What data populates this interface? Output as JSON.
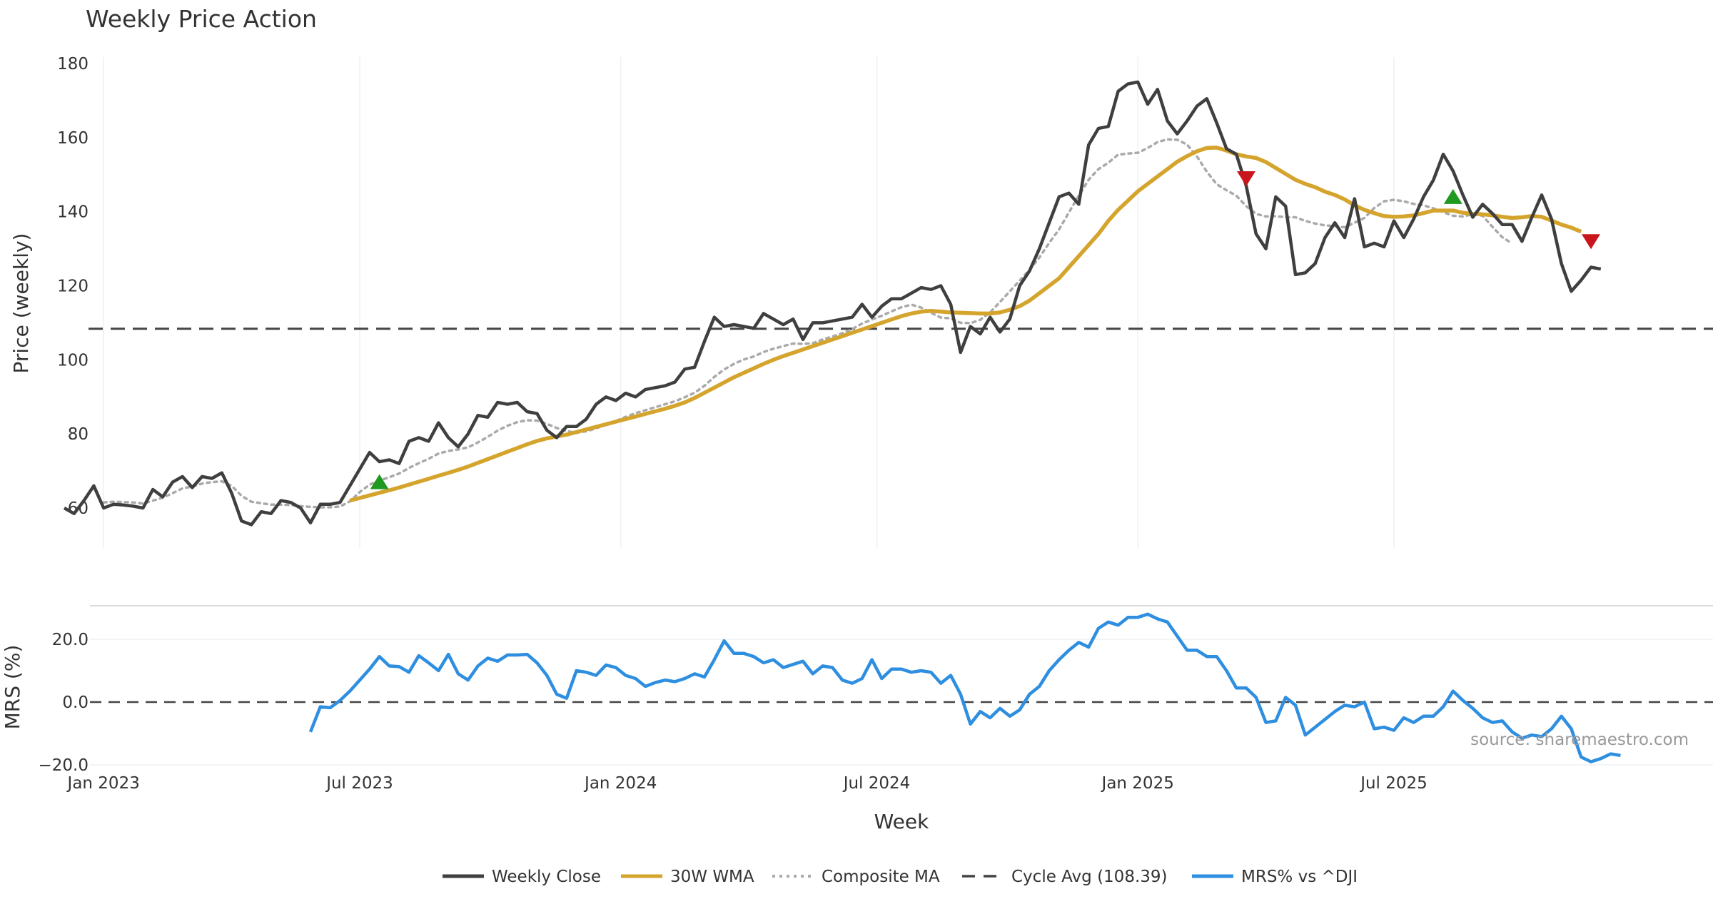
{
  "chart_data": {
    "type": "line",
    "title": "Weekly Price Action",
    "xlabel": "Week",
    "source": "source: sharemaestro.com",
    "x_ticks": [
      {
        "label": "Jan 2023",
        "t": 4
      },
      {
        "label": "Jul 2023",
        "t": 30
      },
      {
        "label": "Jan 2024",
        "t": 56.5
      },
      {
        "label": "Jul 2024",
        "t": 82.5
      },
      {
        "label": "Jan 2025",
        "t": 109
      },
      {
        "label": "Jul 2025",
        "t": 135
      }
    ],
    "price_panel": {
      "ylabel": "Price (weekly)",
      "ylim": [
        48,
        182
      ],
      "yticks": [
        60,
        80,
        100,
        120,
        140,
        160,
        180
      ],
      "cycle_avg": 108.39,
      "weekly_close": [
        60,
        58.5,
        62,
        66,
        60,
        61,
        60.8,
        60.5,
        60,
        65,
        63,
        67,
        68.5,
        65.5,
        68.5,
        68,
        69.5,
        64,
        56.5,
        55.5,
        59,
        58.5,
        62,
        61.5,
        60,
        56,
        61,
        61,
        61.5,
        66,
        70.5,
        75,
        72.5,
        73,
        72,
        78,
        79,
        78,
        83,
        79,
        76.5,
        80,
        85,
        84.5,
        88.5,
        88,
        88.5,
        86,
        85.5,
        81,
        79,
        82,
        82,
        84,
        88,
        90,
        89,
        91,
        90,
        92,
        92.5,
        93,
        94,
        97.5,
        98,
        105,
        111.5,
        109,
        109.5,
        109,
        108.5,
        112.5,
        111,
        109.5,
        111,
        105.5,
        110,
        110,
        110.5,
        111,
        111.5,
        115,
        111.5,
        114.5,
        116.5,
        116.5,
        118,
        119.5,
        119,
        120,
        115,
        102,
        109,
        107,
        111.5,
        107.5,
        111,
        120,
        124,
        130,
        137,
        144,
        145,
        142,
        158,
        162.5,
        163,
        172.5,
        174.5,
        175,
        169,
        173,
        164.5,
        161,
        164.5,
        168.5,
        170.5,
        164,
        157,
        155.5,
        147,
        134,
        130,
        144,
        141.5,
        123,
        123.5,
        126,
        133,
        137,
        133,
        143.5,
        130.5,
        131.5,
        130.5,
        137.5,
        133,
        138,
        144,
        148.5,
        155.5,
        151,
        144.5,
        138.5,
        142,
        139.5,
        136.5,
        136.5,
        132,
        138.5,
        144.5,
        138,
        126,
        118.5,
        121.5,
        125,
        124.5
      ],
      "wma_30": {
        "start_index": 29,
        "values": [
          62,
          62.7,
          63.4,
          64.1,
          64.8,
          65.5,
          66.3,
          67.1,
          67.9,
          68.7,
          69.5,
          70.3,
          71.2,
          72.2,
          73.2,
          74.2,
          75.2,
          76.2,
          77.2,
          78.1,
          78.8,
          79.3,
          79.8,
          80.5,
          81.2,
          81.9,
          82.6,
          83.3,
          84,
          84.7,
          85.4,
          86.1,
          86.8,
          87.6,
          88.5,
          89.7,
          91.1,
          92.5,
          93.9,
          95.3,
          96.5,
          97.7,
          98.9,
          100,
          101,
          101.9,
          102.8,
          103.7,
          104.6,
          105.5,
          106.4,
          107.3,
          108.2,
          109.1,
          110,
          110.9,
          111.8,
          112.5,
          113,
          113.2,
          113,
          112.8,
          112.7,
          112.6,
          112.5,
          112.5,
          112.8,
          113.5,
          114.5,
          116,
          118,
          120,
          122,
          125,
          128,
          131,
          134,
          137.5,
          140.5,
          143,
          145.5,
          147.5,
          149.5,
          151.5,
          153.5,
          155,
          156.3,
          157.2,
          157.3,
          156.5,
          155.5,
          154.9,
          154.5,
          153.4,
          151.8,
          150.2,
          148.6,
          147.5,
          146.6,
          145.4,
          144.5,
          143.3,
          141.7,
          140.5,
          139.6,
          138.8,
          138.6,
          138.7,
          139,
          139.6,
          140.3,
          140.3,
          140.3,
          139.7,
          139.4,
          139.3,
          139,
          138.6,
          138.3,
          138.5,
          138.8,
          138.6,
          137.6,
          136.5,
          135.7,
          134.6
        ]
      },
      "composite_ma": {
        "start_index": 4,
        "values": [
          61.5,
          61.7,
          61.6,
          61.5,
          61.2,
          62,
          62.8,
          64,
          65.3,
          65.8,
          66.6,
          67,
          67.2,
          66,
          63.3,
          61.7,
          61.3,
          60.9,
          60.9,
          60.8,
          60.5,
          60.3,
          60.2,
          60.2,
          60.4,
          61.8,
          64.3,
          66.3,
          67.4,
          68.3,
          69.3,
          70.8,
          72.1,
          73.3,
          74.7,
          75.4,
          75.8,
          76.4,
          77.7,
          79.2,
          80.9,
          82.2,
          83.2,
          83.7,
          83.6,
          82.7,
          81.6,
          80.8,
          80.3,
          80.7,
          81.5,
          82.6,
          83.5,
          84.6,
          85.6,
          86.4,
          87.2,
          88,
          88.8,
          89.9,
          91.1,
          93,
          95.4,
          97.4,
          98.9,
          100.1,
          100.9,
          102.1,
          103,
          103.7,
          104.4,
          104.3,
          104.5,
          105.5,
          106.3,
          107.2,
          108.3,
          109.8,
          110.9,
          111.9,
          113.1,
          114.2,
          114.9,
          114.1,
          112.7,
          111.4,
          111.2,
          110,
          109.9,
          110.8,
          112.8,
          115.6,
          118.5,
          121.4,
          124.3,
          127.6,
          131.6,
          135.2,
          139.8,
          144.3,
          148.6,
          151.5,
          153.2,
          155.4,
          155.7,
          155.9,
          157.2,
          158.8,
          159.5,
          159.4,
          158.1,
          154.9,
          150.8,
          147.4,
          145.8,
          144.3,
          141.5,
          139.4,
          138.7,
          138.8,
          138.5,
          138.5,
          137.5,
          136.8,
          136.3,
          136.1,
          135.8,
          137,
          138.3,
          141,
          142.8,
          143.2,
          142.8,
          142.1,
          141.7,
          140.9,
          139.9,
          138.9,
          138.7,
          139.3,
          138.9,
          135.9,
          133.1,
          131.4
        ]
      },
      "buy_signals": [
        {
          "index": 32,
          "value": 67
        },
        {
          "index": 141,
          "value": 144
        }
      ],
      "sell_signals": [
        {
          "index": 120,
          "value": 149
        },
        {
          "index": 155,
          "value": 132
        }
      ]
    },
    "mrs_panel": {
      "ylabel": "MRS (%)",
      "ylim": [
        -20,
        30
      ],
      "yticks": [
        {
          "v": 20,
          "label": "20.0"
        },
        {
          "v": 0,
          "label": "0.0"
        },
        {
          "v": -20,
          "label": "−20.0"
        }
      ],
      "start_index": 25,
      "values": [
        -9.5,
        -1.5,
        -1.8,
        0.5,
        3.5,
        7,
        10.5,
        14.5,
        11.5,
        11.3,
        9.5,
        14.8,
        12.5,
        10,
        15.2,
        9,
        7,
        11.5,
        14,
        13,
        15,
        15,
        15.2,
        12.5,
        8.5,
        2.5,
        1.2,
        10,
        9.5,
        8.5,
        11.8,
        11,
        8.5,
        7.5,
        5,
        6.2,
        7,
        6.5,
        7.5,
        9,
        8,
        13.5,
        19.5,
        15.5,
        15.5,
        14.5,
        12.5,
        13.5,
        11,
        12,
        13,
        9,
        11.5,
        11,
        7,
        6,
        7.5,
        13.5,
        7.5,
        10.5,
        10.5,
        9.5,
        10,
        9.5,
        6,
        8.5,
        2.5,
        -7,
        -3,
        -5,
        -2,
        -4.5,
        -2.5,
        2.5,
        5,
        10,
        13.5,
        16.5,
        19,
        17.5,
        23.5,
        25.5,
        24.5,
        27,
        27,
        28,
        26.5,
        25.5,
        21,
        16.5,
        16.5,
        14.5,
        14.5,
        10,
        4.5,
        4.5,
        1.5,
        -6.5,
        -6,
        1.5,
        -1,
        -10.5,
        -8,
        -5.5,
        -3,
        -1,
        -1.5,
        0,
        -8.5,
        -8,
        -9,
        -5,
        -6.5,
        -4.5,
        -4.5,
        -1.5,
        3.5,
        0.5,
        -2,
        -5,
        -6.5,
        -6,
        -9.5,
        -11.5,
        -10.5,
        -11,
        -8.5,
        -4.5,
        -8.5,
        -17.5,
        -19,
        -18,
        -16.5,
        -17
      ],
      "zero_line": 0
    },
    "legend": [
      {
        "label": "Weekly Close",
        "color": "#3f3f3f",
        "style": "solid"
      },
      {
        "label": "30W WMA",
        "color": "#d4a42c",
        "style": "solid"
      },
      {
        "label": "Composite MA",
        "color": "#aaaaaa",
        "style": "dotted"
      },
      {
        "label": "Cycle Avg (108.39)",
        "color": "#444444",
        "style": "dashed"
      },
      {
        "label": "MRS% vs ^DJI",
        "color": "#2e8ee0",
        "style": "solid"
      }
    ],
    "colors": {
      "close": "#3f3f3f",
      "wma": "#d4a42c",
      "composite": "#aaaaaa",
      "cycle": "#444444",
      "mrs": "#2e8ee0",
      "buy": "#1f9a1f",
      "sell": "#c8161c"
    }
  }
}
